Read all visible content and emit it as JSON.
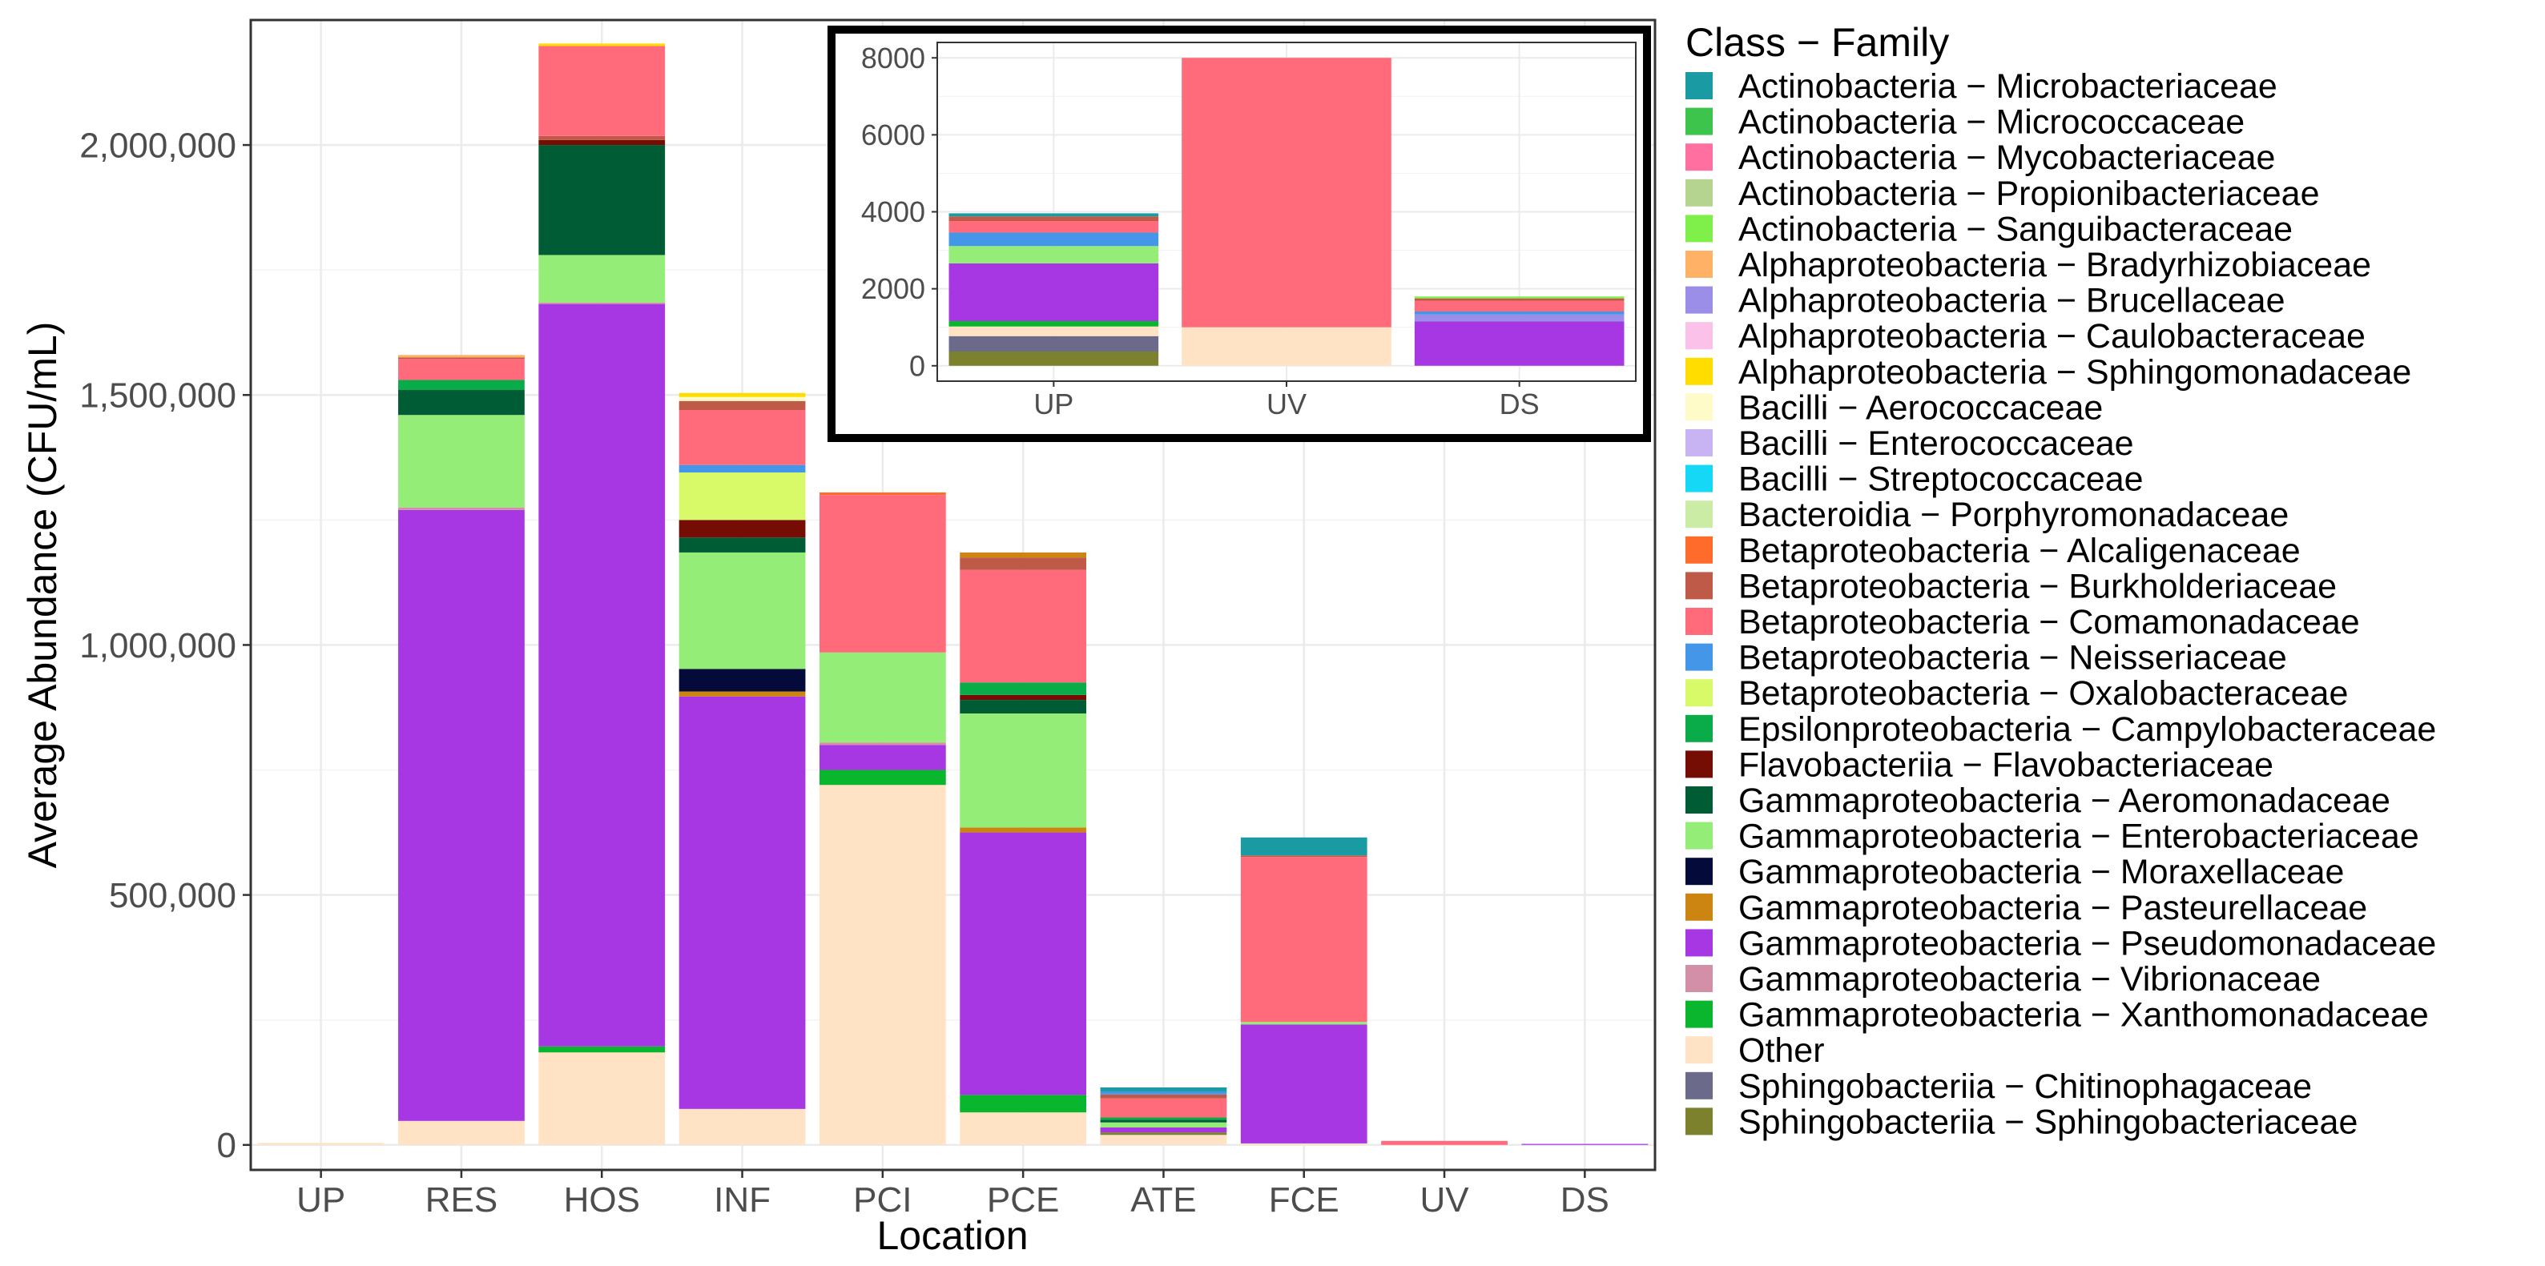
{
  "chart_data": [
    {
      "type": "bar",
      "stacked": true,
      "title": "",
      "xlabel": "Location",
      "ylabel": "Average Abundance (CFU/mL)",
      "ylim": [
        -50000,
        2250000
      ],
      "yticks": [
        0,
        500000,
        1000000,
        1500000,
        2000000
      ],
      "ytick_labels": [
        "0",
        "500,000",
        "1,000,000",
        "1,500,000",
        "2,000,000"
      ],
      "grid": true,
      "categories": [
        "UP",
        "RES",
        "HOS",
        "INF",
        "PCI",
        "PCE",
        "ATE",
        "FCE",
        "UV",
        "DS"
      ],
      "stacks": [
        [
          [
            "Other",
            4000
          ]
        ],
        [
          [
            "Other",
            48000
          ],
          [
            "Gammaproteobacteria − Pseudomonadaceae",
            1222000
          ],
          [
            "Gammaproteobacteria − Vibrionaceae",
            5000
          ],
          [
            "Gammaproteobacteria − Enterobacteriaceae",
            185000
          ],
          [
            "Gammaproteobacteria − Aeromonadaceae",
            50000
          ],
          [
            "Epsilonproteobacteria − Campylobacteraceae",
            20000
          ],
          [
            "Betaproteobacteria − Comamonadaceae",
            42000
          ],
          [
            "Betaproteobacteria − Burkholderiaceae",
            3000
          ],
          [
            "Alphaproteobacteria − Bradyrhizobiaceae",
            5000
          ]
        ],
        [
          [
            "Other",
            185000
          ],
          [
            "Gammaproteobacteria − Xanthomonadaceae",
            12000
          ],
          [
            "Gammaproteobacteria − Pseudomonadaceae",
            1485000
          ],
          [
            "Gammaproteobacteria − Vibrionaceae",
            3000
          ],
          [
            "Gammaproteobacteria − Enterobacteriaceae",
            95000
          ],
          [
            "Gammaproteobacteria − Aeromonadaceae",
            220000
          ],
          [
            "Flavobacteriia − Flavobacteriaceae",
            10000
          ],
          [
            "Betaproteobacteria − Burkholderiaceae",
            8000
          ],
          [
            "Betaproteobacteria − Comamonadaceae",
            180000
          ],
          [
            "Alphaproteobacteria − Sphingomonadaceae",
            5000
          ]
        ],
        [
          [
            "Other",
            72000
          ],
          [
            "Gammaproteobacteria − Pseudomonadaceae",
            825000
          ],
          [
            "Gammaproteobacteria − Pasteurellaceae",
            10000
          ],
          [
            "Gammaproteobacteria − Moraxellaceae",
            45000
          ],
          [
            "Gammaproteobacteria − Enterobacteriaceae",
            233000
          ],
          [
            "Gammaproteobacteria − Aeromonadaceae",
            30000
          ],
          [
            "Flavobacteriia − Flavobacteriaceae",
            35000
          ],
          [
            "Betaproteobacteria − Oxalobacteraceae",
            95000
          ],
          [
            "Betaproteobacteria − Neisseriaceae",
            15000
          ],
          [
            "Betaproteobacteria − Comamonadaceae",
            110000
          ],
          [
            "Betaproteobacteria − Burkholderiaceae",
            18000
          ],
          [
            "Bacilli − Aerococcaceae",
            8000
          ],
          [
            "Alphaproteobacteria − Sphingomonadaceae",
            8000
          ]
        ],
        [
          [
            "Other",
            720000
          ],
          [
            "Gammaproteobacteria − Xanthomonadaceae",
            30000
          ],
          [
            "Gammaproteobacteria − Pseudomonadaceae",
            50000
          ],
          [
            "Gammaproteobacteria − Vibrionaceae",
            5000
          ],
          [
            "Gammaproteobacteria − Enterobacteriaceae",
            180000
          ],
          [
            "Betaproteobacteria − Comamonadaceae",
            315000
          ],
          [
            "Betaproteobacteria − Alcaligenaceae",
            5000
          ]
        ],
        [
          [
            "Other",
            65000
          ],
          [
            "Gammaproteobacteria − Xanthomonadaceae",
            35000
          ],
          [
            "Gammaproteobacteria − Pseudomonadaceae",
            525000
          ],
          [
            "Gammaproteobacteria − Pasteurellaceae",
            10000
          ],
          [
            "Gammaproteobacteria − Enterobacteriaceae",
            228000
          ],
          [
            "Gammaproteobacteria − Aeromonadaceae",
            27000
          ],
          [
            "Flavobacteriia − Flavobacteriaceae",
            10000
          ],
          [
            "Epsilonproteobacteria − Campylobacteraceae",
            25000
          ],
          [
            "Betaproteobacteria − Comamonadaceae",
            225000
          ],
          [
            "Betaproteobacteria − Burkholderiaceae",
            25000
          ],
          [
            "Gammaproteobacteria − Pasteurellaceae",
            10000
          ]
        ],
        [
          [
            "Other",
            20000
          ],
          [
            "Sphingobacteriia − Sphingobacteriaceae",
            5000
          ],
          [
            "Gammaproteobacteria − Pseudomonadaceae",
            10000
          ],
          [
            "Gammaproteobacteria − Enterobacteriaceae",
            10000
          ],
          [
            "Gammaproteobacteria − Aeromonadaceae",
            5000
          ],
          [
            "Epsilonproteobacteria − Campylobacteraceae",
            5000
          ],
          [
            "Betaproteobacteria − Comamonadaceae",
            38000
          ],
          [
            "Betaproteobacteria − Burkholderiaceae",
            8000
          ],
          [
            "Betaproteobacteria − Neisseriaceae",
            6000
          ],
          [
            "Actinobacteria − Microbacteriaceae",
            8000
          ]
        ],
        [
          [
            "Other",
            3000
          ],
          [
            "Gammaproteobacteria − Pseudomonadaceae",
            238000
          ],
          [
            "Gammaproteobacteria − Enterobacteriaceae",
            5000
          ],
          [
            "Betaproteobacteria − Comamonadaceae",
            330000
          ],
          [
            "Betaproteobacteria − Burkholderiaceae",
            3000
          ],
          [
            "Actinobacteria − Microbacteriaceae",
            36000
          ]
        ],
        [
          [
            "Betaproteobacteria − Comamonadaceae",
            8000
          ]
        ],
        [
          [
            "Gammaproteobacteria − Pseudomonadaceae",
            2000
          ]
        ]
      ]
    },
    {
      "type": "bar",
      "stacked": true,
      "inset": true,
      "title": "",
      "xlabel": "",
      "ylabel": "",
      "ylim": [
        -400,
        8400
      ],
      "yticks": [
        0,
        2000,
        4000,
        6000,
        8000
      ],
      "ytick_labels": [
        "0",
        "2000",
        "4000",
        "6000",
        "8000"
      ],
      "grid": true,
      "categories": [
        "UP",
        "UV",
        "DS"
      ],
      "stacks": [
        [
          [
            "Sphingobacteriia − Sphingobacteriaceae",
            370
          ],
          [
            "Sphingobacteriia − Chitinophagaceae",
            400
          ],
          [
            "Other",
            250
          ],
          [
            "Gammaproteobacteria − Xanthomonadaceae",
            140
          ],
          [
            "Gammaproteobacteria − Pseudomonadaceae",
            1500
          ],
          [
            "Gammaproteobacteria − Enterobacteriaceae",
            450
          ],
          [
            "Betaproteobacteria − Neisseriaceae",
            350
          ],
          [
            "Betaproteobacteria − Comamonadaceae",
            300
          ],
          [
            "Betaproteobacteria − Burkholderiaceae",
            120
          ],
          [
            "Actinobacteria − Microbacteriaceae",
            80
          ]
        ],
        [
          [
            "Other",
            1000
          ],
          [
            "Betaproteobacteria − Comamonadaceae",
            7000
          ]
        ],
        [
          [
            "Gammaproteobacteria − Pseudomonadaceae",
            1150
          ],
          [
            "Alphaproteobacteria − Brucellaceae",
            180
          ],
          [
            "Betaproteobacteria − Neisseriaceae",
            80
          ],
          [
            "Betaproteobacteria − Comamonadaceae",
            280
          ],
          [
            "Betaproteobacteria − Burkholderiaceae",
            60
          ],
          [
            "Actinobacteria − Sanguibacteraceae",
            50
          ]
        ]
      ]
    }
  ],
  "legend": {
    "title": "Class − Family",
    "items": [
      {
        "label": "Actinobacteria − Microbacteriaceae",
        "color": "#1a9ba3"
      },
      {
        "label": "Actinobacteria − Micrococcaceae",
        "color": "#3dc44d"
      },
      {
        "label": "Actinobacteria − Mycobacteriaceae",
        "color": "#ff6fa0"
      },
      {
        "label": "Actinobacteria − Propionibacteriaceae",
        "color": "#b4d490"
      },
      {
        "label": "Actinobacteria − Sanguibacteraceae",
        "color": "#7ff04a"
      },
      {
        "label": "Alphaproteobacteria − Bradyrhizobiaceae",
        "color": "#ffb166"
      },
      {
        "label": "Alphaproteobacteria − Brucellaceae",
        "color": "#9a8ee8"
      },
      {
        "label": "Alphaproteobacteria − Caulobacteraceae",
        "color": "#fbc1e8"
      },
      {
        "label": "Alphaproteobacteria − Sphingomonadaceae",
        "color": "#ffdd00"
      },
      {
        "label": "Bacilli − Aerococcaceae",
        "color": "#fffbc8"
      },
      {
        "label": "Bacilli − Enterococcaceae",
        "color": "#c9b4f3"
      },
      {
        "label": "Bacilli − Streptococcaceae",
        "color": "#14d8f6"
      },
      {
        "label": "Bacteroidia − Porphyromonadaceae",
        "color": "#cbeca4"
      },
      {
        "label": "Betaproteobacteria − Alcaligenaceae",
        "color": "#ff6b2b"
      },
      {
        "label": "Betaproteobacteria − Burkholderiaceae",
        "color": "#c05a48"
      },
      {
        "label": "Betaproteobacteria − Comamonadaceae",
        "color": "#ff6b7b"
      },
      {
        "label": "Betaproteobacteria − Neisseriaceae",
        "color": "#4396e8"
      },
      {
        "label": "Betaproteobacteria − Oxalobacteraceae",
        "color": "#d8fa68"
      },
      {
        "label": "Epsilonproteobacteria − Campylobacteraceae",
        "color": "#0aac4a"
      },
      {
        "label": "Flavobacteriia − Flavobacteriaceae",
        "color": "#750d04"
      },
      {
        "label": "Gammaproteobacteria − Aeromonadaceae",
        "color": "#005c35"
      },
      {
        "label": "Gammaproteobacteria − Enterobacteriaceae",
        "color": "#94ed76"
      },
      {
        "label": "Gammaproteobacteria − Moraxellaceae",
        "color": "#040a3a"
      },
      {
        "label": "Gammaproteobacteria − Pasteurellaceae",
        "color": "#cd8512"
      },
      {
        "label": "Gammaproteobacteria − Pseudomonadaceae",
        "color": "#a637e2"
      },
      {
        "label": "Gammaproteobacteria − Vibrionaceae",
        "color": "#d48fa8"
      },
      {
        "label": "Gammaproteobacteria − Xanthomonadaceae",
        "color": "#09b62d"
      },
      {
        "label": "Other",
        "color": "#ffe3c4"
      },
      {
        "label": "Sphingobacteriia − Chitinophagaceae",
        "color": "#6c6a8a"
      },
      {
        "label": "Sphingobacteriia − Sphingobacteriaceae",
        "color": "#7b812c"
      }
    ]
  }
}
